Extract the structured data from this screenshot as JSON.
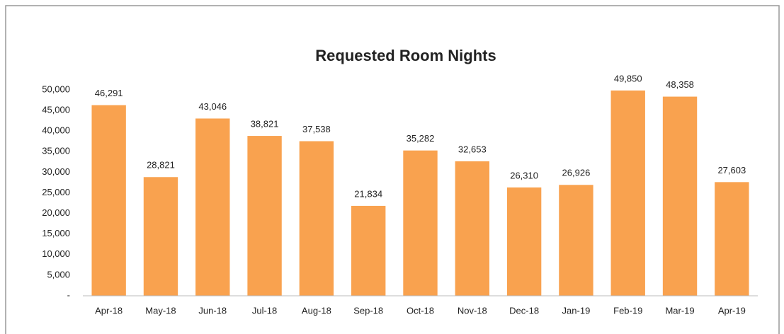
{
  "chart_data": {
    "type": "bar",
    "title": "Requested Room Nights",
    "categories": [
      "Apr-18",
      "May-18",
      "Jun-18",
      "Jul-18",
      "Aug-18",
      "Sep-18",
      "Oct-18",
      "Nov-18",
      "Dec-18",
      "Jan-19",
      "Feb-19",
      "Mar-19",
      "Apr-19"
    ],
    "values": [
      46291,
      28821,
      43046,
      38821,
      37538,
      21834,
      35282,
      32653,
      26310,
      26926,
      49850,
      48358,
      27603
    ],
    "value_labels": [
      "46,291",
      "28,821",
      "43,046",
      "38,821",
      "37,538",
      "21,834",
      "35,282",
      "32,653",
      "26,310",
      "26,926",
      "49,850",
      "48,358",
      "27,603"
    ],
    "color": "#f9a24f",
    "ylim": [
      0,
      50000
    ],
    "yticks": [
      {
        "value": 0,
        "label": "-"
      },
      {
        "value": 5000,
        "label": "5,000"
      },
      {
        "value": 10000,
        "label": "10,000"
      },
      {
        "value": 15000,
        "label": "15,000"
      },
      {
        "value": 20000,
        "label": "20,000"
      },
      {
        "value": 25000,
        "label": "25,000"
      },
      {
        "value": 30000,
        "label": "30,000"
      },
      {
        "value": 35000,
        "label": "35,000"
      },
      {
        "value": 40000,
        "label": "40,000"
      },
      {
        "value": 45000,
        "label": "45,000"
      },
      {
        "value": 50000,
        "label": "50,000"
      }
    ],
    "grid": false
  }
}
